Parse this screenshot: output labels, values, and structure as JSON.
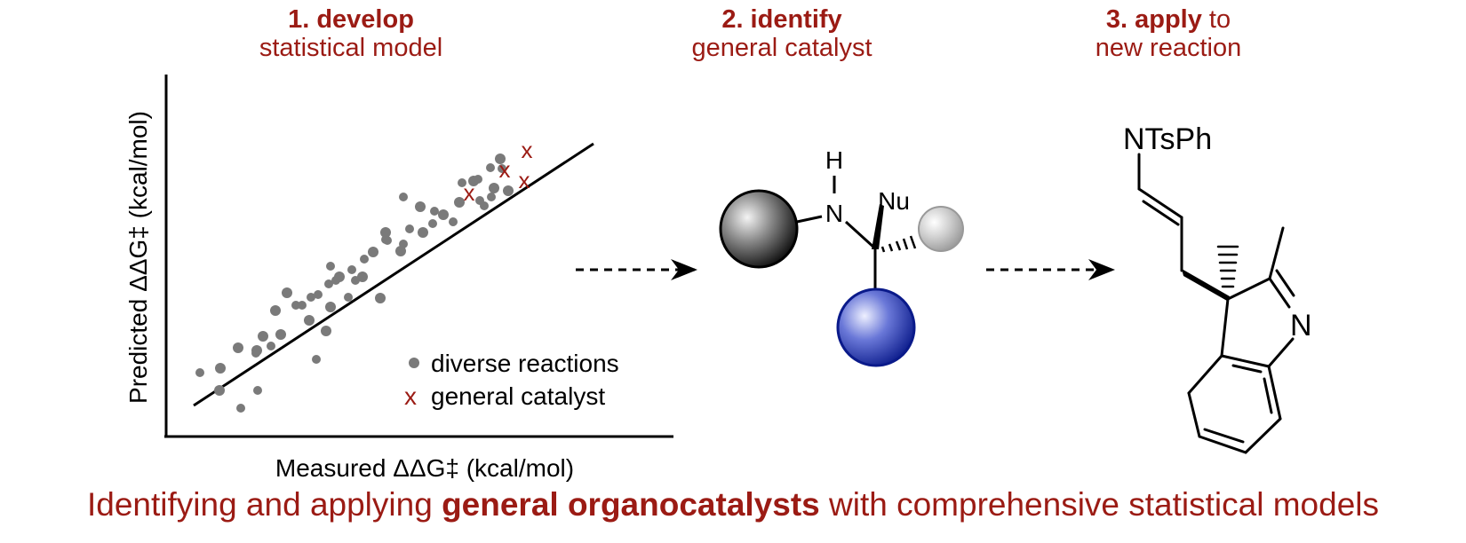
{
  "steps": [
    {
      "bold": "1. develop",
      "rest": "",
      "line2": "statistical model"
    },
    {
      "bold": "2. identify",
      "rest": "",
      "line2": "general catalyst"
    },
    {
      "bold": "3. apply",
      "rest": " to",
      "line2": "new reaction"
    }
  ],
  "plot": {
    "xlabel": "Measured ΔΔG‡ (kcal/mol)",
    "ylabel": "Predicted ΔΔG‡ (kcal/mol)",
    "legend": {
      "dot_label": "diverse reactions",
      "cross_marker": "x",
      "cross_label": "general catalyst"
    }
  },
  "catalyst": {
    "h_label": "H",
    "n_label": "N",
    "nu_label": "Nu"
  },
  "product": {
    "substituent": "NTsPh",
    "ring_n": "N"
  },
  "tagline": {
    "pre": "Identifying and applying ",
    "bold": "general organocatalysts",
    "post": " with comprehensive statistical models"
  },
  "colors": {
    "accent": "#9b1b14",
    "dots": "#7a7a7a",
    "blue_sphere": "#1f2fa8",
    "black_sphere": "#222222",
    "gray_sphere": "#b8b8b8"
  }
}
